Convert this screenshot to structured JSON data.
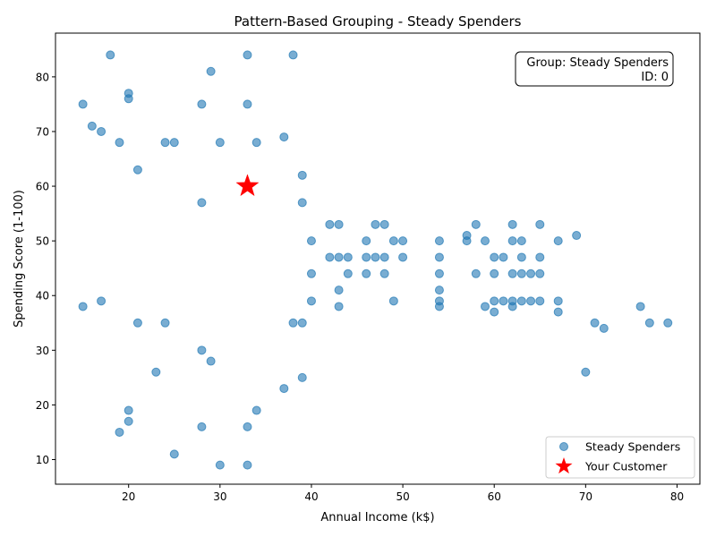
{
  "chart_data": {
    "type": "scatter",
    "title": "Pattern-Based Grouping - Steady Spenders",
    "xlabel": "Annual Income (k$)",
    "ylabel": "Spending Score (1-100)",
    "xlim": [
      12,
      82.5
    ],
    "ylim": [
      5.5,
      88
    ],
    "xticks": [
      20,
      30,
      40,
      50,
      60,
      70,
      80
    ],
    "yticks": [
      10,
      20,
      30,
      40,
      50,
      60,
      70,
      80
    ],
    "grid": false,
    "legend_position": "lower-right",
    "series": [
      {
        "name": "Steady Spenders",
        "color": "#1f77b4",
        "marker": "circle",
        "points": [
          [
            15,
            75
          ],
          [
            15,
            38
          ],
          [
            16,
            71
          ],
          [
            17,
            70
          ],
          [
            17,
            39
          ],
          [
            18,
            84
          ],
          [
            19,
            68
          ],
          [
            19,
            15
          ],
          [
            20,
            77
          ],
          [
            20,
            76
          ],
          [
            20,
            19
          ],
          [
            20,
            17
          ],
          [
            21,
            63
          ],
          [
            21,
            35
          ],
          [
            23,
            26
          ],
          [
            24,
            68
          ],
          [
            24,
            35
          ],
          [
            25,
            68
          ],
          [
            25,
            11
          ],
          [
            28,
            75
          ],
          [
            28,
            57
          ],
          [
            28,
            30
          ],
          [
            28,
            16
          ],
          [
            29,
            81
          ],
          [
            29,
            28
          ],
          [
            30,
            68
          ],
          [
            30,
            9
          ],
          [
            33,
            84
          ],
          [
            33,
            75
          ],
          [
            33,
            16
          ],
          [
            33,
            9
          ],
          [
            34,
            68
          ],
          [
            34,
            19
          ],
          [
            37,
            69
          ],
          [
            37,
            23
          ],
          [
            38,
            84
          ],
          [
            38,
            35
          ],
          [
            39,
            62
          ],
          [
            39,
            57
          ],
          [
            39,
            35
          ],
          [
            39,
            25
          ],
          [
            40,
            50
          ],
          [
            40,
            44
          ],
          [
            40,
            39
          ],
          [
            42,
            53
          ],
          [
            42,
            47
          ],
          [
            43,
            53
          ],
          [
            43,
            47
          ],
          [
            43,
            41
          ],
          [
            43,
            38
          ],
          [
            44,
            47
          ],
          [
            44,
            44
          ],
          [
            46,
            50
          ],
          [
            46,
            47
          ],
          [
            46,
            44
          ],
          [
            47,
            53
          ],
          [
            47,
            47
          ],
          [
            48,
            53
          ],
          [
            48,
            47
          ],
          [
            48,
            44
          ],
          [
            49,
            50
          ],
          [
            49,
            39
          ],
          [
            50,
            50
          ],
          [
            50,
            47
          ],
          [
            54,
            50
          ],
          [
            54,
            47
          ],
          [
            54,
            44
          ],
          [
            54,
            41
          ],
          [
            54,
            39
          ],
          [
            54,
            38
          ],
          [
            57,
            51
          ],
          [
            57,
            50
          ],
          [
            58,
            53
          ],
          [
            58,
            44
          ],
          [
            59,
            50
          ],
          [
            59,
            38
          ],
          [
            60,
            47
          ],
          [
            60,
            44
          ],
          [
            60,
            39
          ],
          [
            60,
            37
          ],
          [
            61,
            47
          ],
          [
            61,
            39
          ],
          [
            62,
            53
          ],
          [
            62,
            50
          ],
          [
            62,
            44
          ],
          [
            62,
            39
          ],
          [
            62,
            38
          ],
          [
            63,
            50
          ],
          [
            63,
            47
          ],
          [
            63,
            44
          ],
          [
            63,
            39
          ],
          [
            64,
            44
          ],
          [
            64,
            39
          ],
          [
            65,
            53
          ],
          [
            65,
            47
          ],
          [
            65,
            44
          ],
          [
            65,
            39
          ],
          [
            67,
            50
          ],
          [
            67,
            39
          ],
          [
            67,
            37
          ],
          [
            69,
            51
          ],
          [
            70,
            26
          ],
          [
            71,
            35
          ],
          [
            72,
            34
          ],
          [
            76,
            38
          ],
          [
            77,
            35
          ],
          [
            79,
            35
          ]
        ]
      },
      {
        "name": "Your Customer",
        "color": "#ff0000",
        "marker": "star",
        "points": [
          [
            33,
            60
          ]
        ]
      }
    ],
    "annotation": {
      "line1": "Group: Steady Spenders",
      "line2": "ID: 0",
      "position": "top-right"
    }
  }
}
